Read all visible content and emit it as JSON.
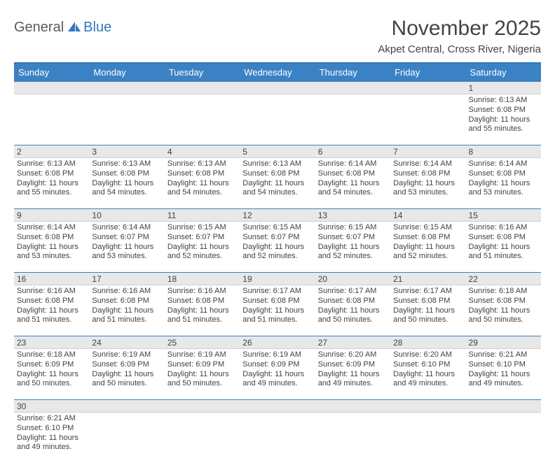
{
  "logo": {
    "main": "General",
    "accent": "Blue"
  },
  "title": "November 2025",
  "location": "Akpet Central, Cross River, Nigeria",
  "header_bg": "#3b82c4",
  "border_color": "#3b82c4",
  "numrow_bg": "#e8e8e8",
  "day_headers": [
    "Sunday",
    "Monday",
    "Tuesday",
    "Wednesday",
    "Thursday",
    "Friday",
    "Saturday"
  ],
  "weeks": [
    [
      {
        "num": "",
        "lines": []
      },
      {
        "num": "",
        "lines": []
      },
      {
        "num": "",
        "lines": []
      },
      {
        "num": "",
        "lines": []
      },
      {
        "num": "",
        "lines": []
      },
      {
        "num": "",
        "lines": []
      },
      {
        "num": "1",
        "lines": [
          "Sunrise: 6:13 AM",
          "Sunset: 6:08 PM",
          "Daylight: 11 hours and 55 minutes."
        ]
      }
    ],
    [
      {
        "num": "2",
        "lines": [
          "Sunrise: 6:13 AM",
          "Sunset: 6:08 PM",
          "Daylight: 11 hours and 55 minutes."
        ]
      },
      {
        "num": "3",
        "lines": [
          "Sunrise: 6:13 AM",
          "Sunset: 6:08 PM",
          "Daylight: 11 hours and 54 minutes."
        ]
      },
      {
        "num": "4",
        "lines": [
          "Sunrise: 6:13 AM",
          "Sunset: 6:08 PM",
          "Daylight: 11 hours and 54 minutes."
        ]
      },
      {
        "num": "5",
        "lines": [
          "Sunrise: 6:13 AM",
          "Sunset: 6:08 PM",
          "Daylight: 11 hours and 54 minutes."
        ]
      },
      {
        "num": "6",
        "lines": [
          "Sunrise: 6:14 AM",
          "Sunset: 6:08 PM",
          "Daylight: 11 hours and 54 minutes."
        ]
      },
      {
        "num": "7",
        "lines": [
          "Sunrise: 6:14 AM",
          "Sunset: 6:08 PM",
          "Daylight: 11 hours and 53 minutes."
        ]
      },
      {
        "num": "8",
        "lines": [
          "Sunrise: 6:14 AM",
          "Sunset: 6:08 PM",
          "Daylight: 11 hours and 53 minutes."
        ]
      }
    ],
    [
      {
        "num": "9",
        "lines": [
          "Sunrise: 6:14 AM",
          "Sunset: 6:08 PM",
          "Daylight: 11 hours and 53 minutes."
        ]
      },
      {
        "num": "10",
        "lines": [
          "Sunrise: 6:14 AM",
          "Sunset: 6:07 PM",
          "Daylight: 11 hours and 53 minutes."
        ]
      },
      {
        "num": "11",
        "lines": [
          "Sunrise: 6:15 AM",
          "Sunset: 6:07 PM",
          "Daylight: 11 hours and 52 minutes."
        ]
      },
      {
        "num": "12",
        "lines": [
          "Sunrise: 6:15 AM",
          "Sunset: 6:07 PM",
          "Daylight: 11 hours and 52 minutes."
        ]
      },
      {
        "num": "13",
        "lines": [
          "Sunrise: 6:15 AM",
          "Sunset: 6:07 PM",
          "Daylight: 11 hours and 52 minutes."
        ]
      },
      {
        "num": "14",
        "lines": [
          "Sunrise: 6:15 AM",
          "Sunset: 6:08 PM",
          "Daylight: 11 hours and 52 minutes."
        ]
      },
      {
        "num": "15",
        "lines": [
          "Sunrise: 6:16 AM",
          "Sunset: 6:08 PM",
          "Daylight: 11 hours and 51 minutes."
        ]
      }
    ],
    [
      {
        "num": "16",
        "lines": [
          "Sunrise: 6:16 AM",
          "Sunset: 6:08 PM",
          "Daylight: 11 hours and 51 minutes."
        ]
      },
      {
        "num": "17",
        "lines": [
          "Sunrise: 6:16 AM",
          "Sunset: 6:08 PM",
          "Daylight: 11 hours and 51 minutes."
        ]
      },
      {
        "num": "18",
        "lines": [
          "Sunrise: 6:16 AM",
          "Sunset: 6:08 PM",
          "Daylight: 11 hours and 51 minutes."
        ]
      },
      {
        "num": "19",
        "lines": [
          "Sunrise: 6:17 AM",
          "Sunset: 6:08 PM",
          "Daylight: 11 hours and 51 minutes."
        ]
      },
      {
        "num": "20",
        "lines": [
          "Sunrise: 6:17 AM",
          "Sunset: 6:08 PM",
          "Daylight: 11 hours and 50 minutes."
        ]
      },
      {
        "num": "21",
        "lines": [
          "Sunrise: 6:17 AM",
          "Sunset: 6:08 PM",
          "Daylight: 11 hours and 50 minutes."
        ]
      },
      {
        "num": "22",
        "lines": [
          "Sunrise: 6:18 AM",
          "Sunset: 6:08 PM",
          "Daylight: 11 hours and 50 minutes."
        ]
      }
    ],
    [
      {
        "num": "23",
        "lines": [
          "Sunrise: 6:18 AM",
          "Sunset: 6:09 PM",
          "Daylight: 11 hours and 50 minutes."
        ]
      },
      {
        "num": "24",
        "lines": [
          "Sunrise: 6:19 AM",
          "Sunset: 6:09 PM",
          "Daylight: 11 hours and 50 minutes."
        ]
      },
      {
        "num": "25",
        "lines": [
          "Sunrise: 6:19 AM",
          "Sunset: 6:09 PM",
          "Daylight: 11 hours and 50 minutes."
        ]
      },
      {
        "num": "26",
        "lines": [
          "Sunrise: 6:19 AM",
          "Sunset: 6:09 PM",
          "Daylight: 11 hours and 49 minutes."
        ]
      },
      {
        "num": "27",
        "lines": [
          "Sunrise: 6:20 AM",
          "Sunset: 6:09 PM",
          "Daylight: 11 hours and 49 minutes."
        ]
      },
      {
        "num": "28",
        "lines": [
          "Sunrise: 6:20 AM",
          "Sunset: 6:10 PM",
          "Daylight: 11 hours and 49 minutes."
        ]
      },
      {
        "num": "29",
        "lines": [
          "Sunrise: 6:21 AM",
          "Sunset: 6:10 PM",
          "Daylight: 11 hours and 49 minutes."
        ]
      }
    ],
    [
      {
        "num": "30",
        "lines": [
          "Sunrise: 6:21 AM",
          "Sunset: 6:10 PM",
          "Daylight: 11 hours and 49 minutes."
        ]
      },
      {
        "num": "",
        "lines": []
      },
      {
        "num": "",
        "lines": []
      },
      {
        "num": "",
        "lines": []
      },
      {
        "num": "",
        "lines": []
      },
      {
        "num": "",
        "lines": []
      },
      {
        "num": "",
        "lines": []
      }
    ]
  ]
}
